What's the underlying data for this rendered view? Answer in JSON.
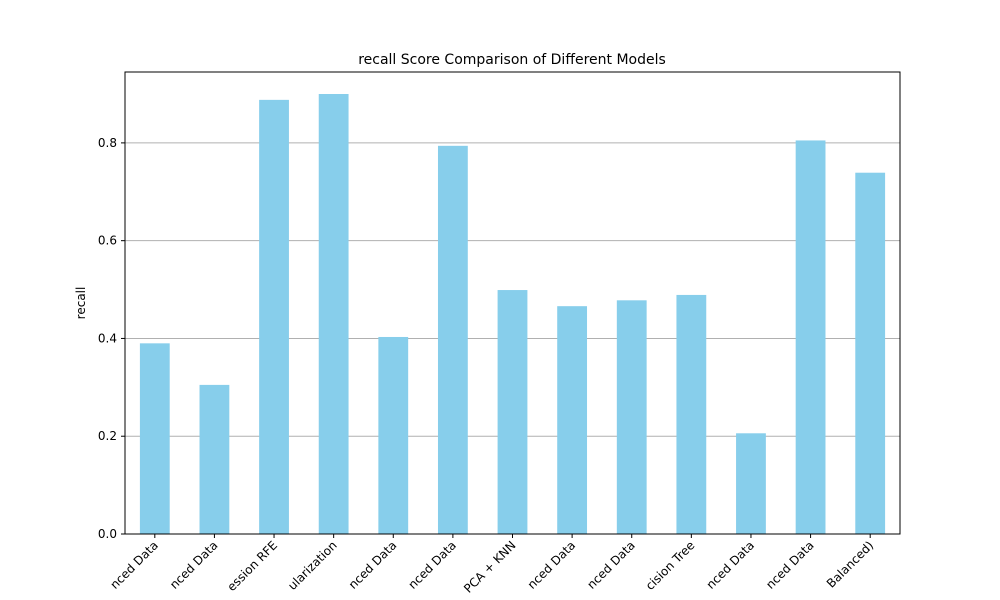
{
  "chart_data": {
    "type": "bar",
    "title": "recall Score Comparison of Different Models",
    "xlabel": "",
    "ylabel": "recall",
    "ylim": [
      0,
      0.945
    ],
    "yticks": [
      "0.0",
      "0.2",
      "0.4",
      "0.6",
      "0.8"
    ],
    "grid": "horizontal",
    "bar_color": "#87ceeb",
    "categories": [
      "nced Data",
      "nced Data",
      "ession RFE",
      "ularization",
      "nced Data",
      "nced Data",
      "PCA + KNN",
      "nced Data",
      "nced Data",
      "cision Tree",
      "nced Data",
      "nced Data",
      "Balanced)"
    ],
    "values": [
      0.39,
      0.305,
      0.888,
      0.9,
      0.403,
      0.794,
      0.499,
      0.466,
      0.478,
      0.489,
      0.206,
      0.805,
      0.739
    ]
  }
}
